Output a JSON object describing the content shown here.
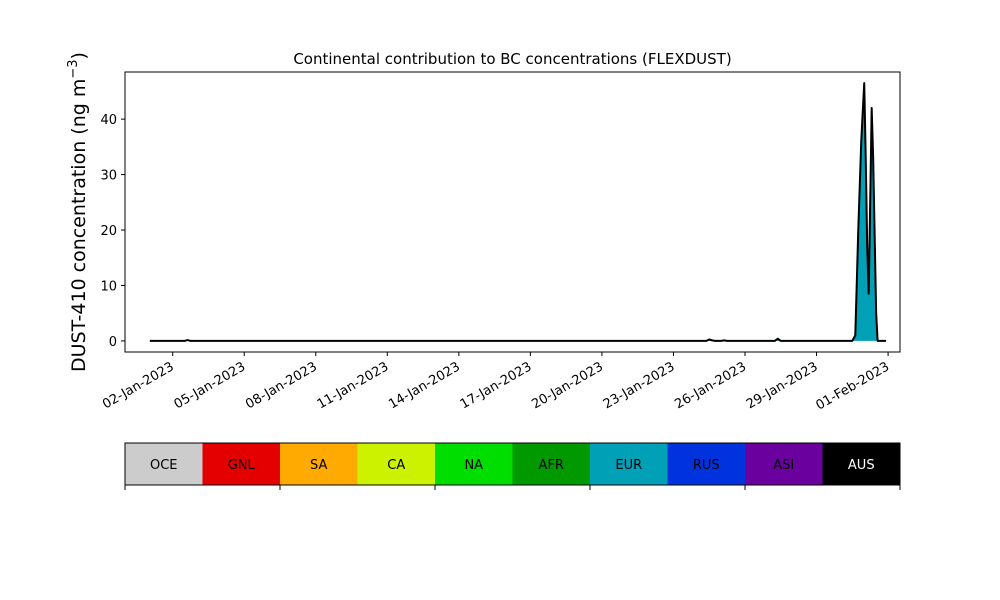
{
  "chart_data": {
    "type": "area",
    "title": "Continental contribution to BC concentrations (FLEXDUST)",
    "ylabel_main": "DUST-410 concentration (ng m",
    "ylabel_sup": "−3",
    "ylabel_close": ")",
    "xlabel": "",
    "xlim": [
      "2023-01-01T00:00",
      "2023-02-02T12:00"
    ],
    "ylim": [
      -2,
      48.5
    ],
    "yticks": [
      0,
      10,
      20,
      30,
      40
    ],
    "xticks": [
      {
        "date": "2023-01-03",
        "label": "02-Jan-2023"
      },
      {
        "date": "2023-01-06",
        "label": "05-Jan-2023"
      },
      {
        "date": "2023-01-09",
        "label": "08-Jan-2023"
      },
      {
        "date": "2023-01-12",
        "label": "11-Jan-2023"
      },
      {
        "date": "2023-01-15",
        "label": "14-Jan-2023"
      },
      {
        "date": "2023-01-18",
        "label": "17-Jan-2023"
      },
      {
        "date": "2023-01-21",
        "label": "20-Jan-2023"
      },
      {
        "date": "2023-01-24",
        "label": "23-Jan-2023"
      },
      {
        "date": "2023-01-27",
        "label": "26-Jan-2023"
      },
      {
        "date": "2023-01-30",
        "label": "29-Jan-2023"
      },
      {
        "date": "2023-02-02",
        "label": "01-Feb-2023"
      }
    ],
    "series": [
      {
        "name": "EUR",
        "color": "#00a1b7",
        "points": [
          [
            "2023-01-02T01:00",
            0
          ],
          [
            "2023-01-03T12:00",
            0
          ],
          [
            "2023-01-03T15:00",
            0.15
          ],
          [
            "2023-01-03T18:00",
            0
          ],
          [
            "2023-01-25T09:00",
            0
          ],
          [
            "2023-01-25T12:00",
            0.25
          ],
          [
            "2023-01-25T15:00",
            0.1
          ],
          [
            "2023-01-25T18:00",
            0
          ],
          [
            "2023-01-26T00:00",
            0
          ],
          [
            "2023-01-26T03:00",
            0.1
          ],
          [
            "2023-01-26T06:00",
            0
          ],
          [
            "2023-01-28T06:00",
            0
          ],
          [
            "2023-01-28T09:00",
            0.4
          ],
          [
            "2023-01-28T12:00",
            0
          ],
          [
            "2023-01-31T12:00",
            0
          ],
          [
            "2023-01-31T15:00",
            1
          ],
          [
            "2023-01-31T18:00",
            20
          ],
          [
            "2023-01-31T21:00",
            36
          ],
          [
            "2023-02-01T00:00",
            46.5
          ],
          [
            "2023-02-01T01:30",
            33
          ],
          [
            "2023-02-01T03:00",
            17
          ],
          [
            "2023-02-01T04:30",
            8.5
          ],
          [
            "2023-02-01T06:00",
            25
          ],
          [
            "2023-02-01T07:30",
            42
          ],
          [
            "2023-02-01T09:00",
            33
          ],
          [
            "2023-02-01T10:30",
            19
          ],
          [
            "2023-02-01T12:00",
            5
          ],
          [
            "2023-02-01T13:30",
            0
          ],
          [
            "2023-02-01T22:00",
            0
          ]
        ]
      },
      {
        "name": "NA",
        "color": "#00de00",
        "points": [
          [
            "2023-01-25T06:00",
            0
          ],
          [
            "2023-01-25T09:00",
            0.05
          ],
          [
            "2023-01-25T12:00",
            0.1
          ],
          [
            "2023-01-25T15:00",
            0.05
          ],
          [
            "2023-01-25T18:00",
            0
          ]
        ]
      }
    ],
    "total_color": "#000000",
    "legend": {
      "placement": "below",
      "entries": [
        {
          "label": "OCE",
          "color": "#cccccc",
          "text_color": "#000000"
        },
        {
          "label": "GNL",
          "color": "#e50000",
          "text_color": "#000000"
        },
        {
          "label": "SA",
          "color": "#ffaa00",
          "text_color": "#000000"
        },
        {
          "label": "CA",
          "color": "#ccf200",
          "text_color": "#000000"
        },
        {
          "label": "NA",
          "color": "#00de00",
          "text_color": "#000000"
        },
        {
          "label": "AFR",
          "color": "#009a00",
          "text_color": "#000000"
        },
        {
          "label": "EUR",
          "color": "#00a1b7",
          "text_color": "#000000"
        },
        {
          "label": "RUS",
          "color": "#0033dd",
          "text_color": "#000000"
        },
        {
          "label": "ASI",
          "color": "#6a009d",
          "text_color": "#000000"
        },
        {
          "label": "AUS",
          "color": "#000000",
          "text_color": "#ffffff"
        }
      ]
    }
  }
}
